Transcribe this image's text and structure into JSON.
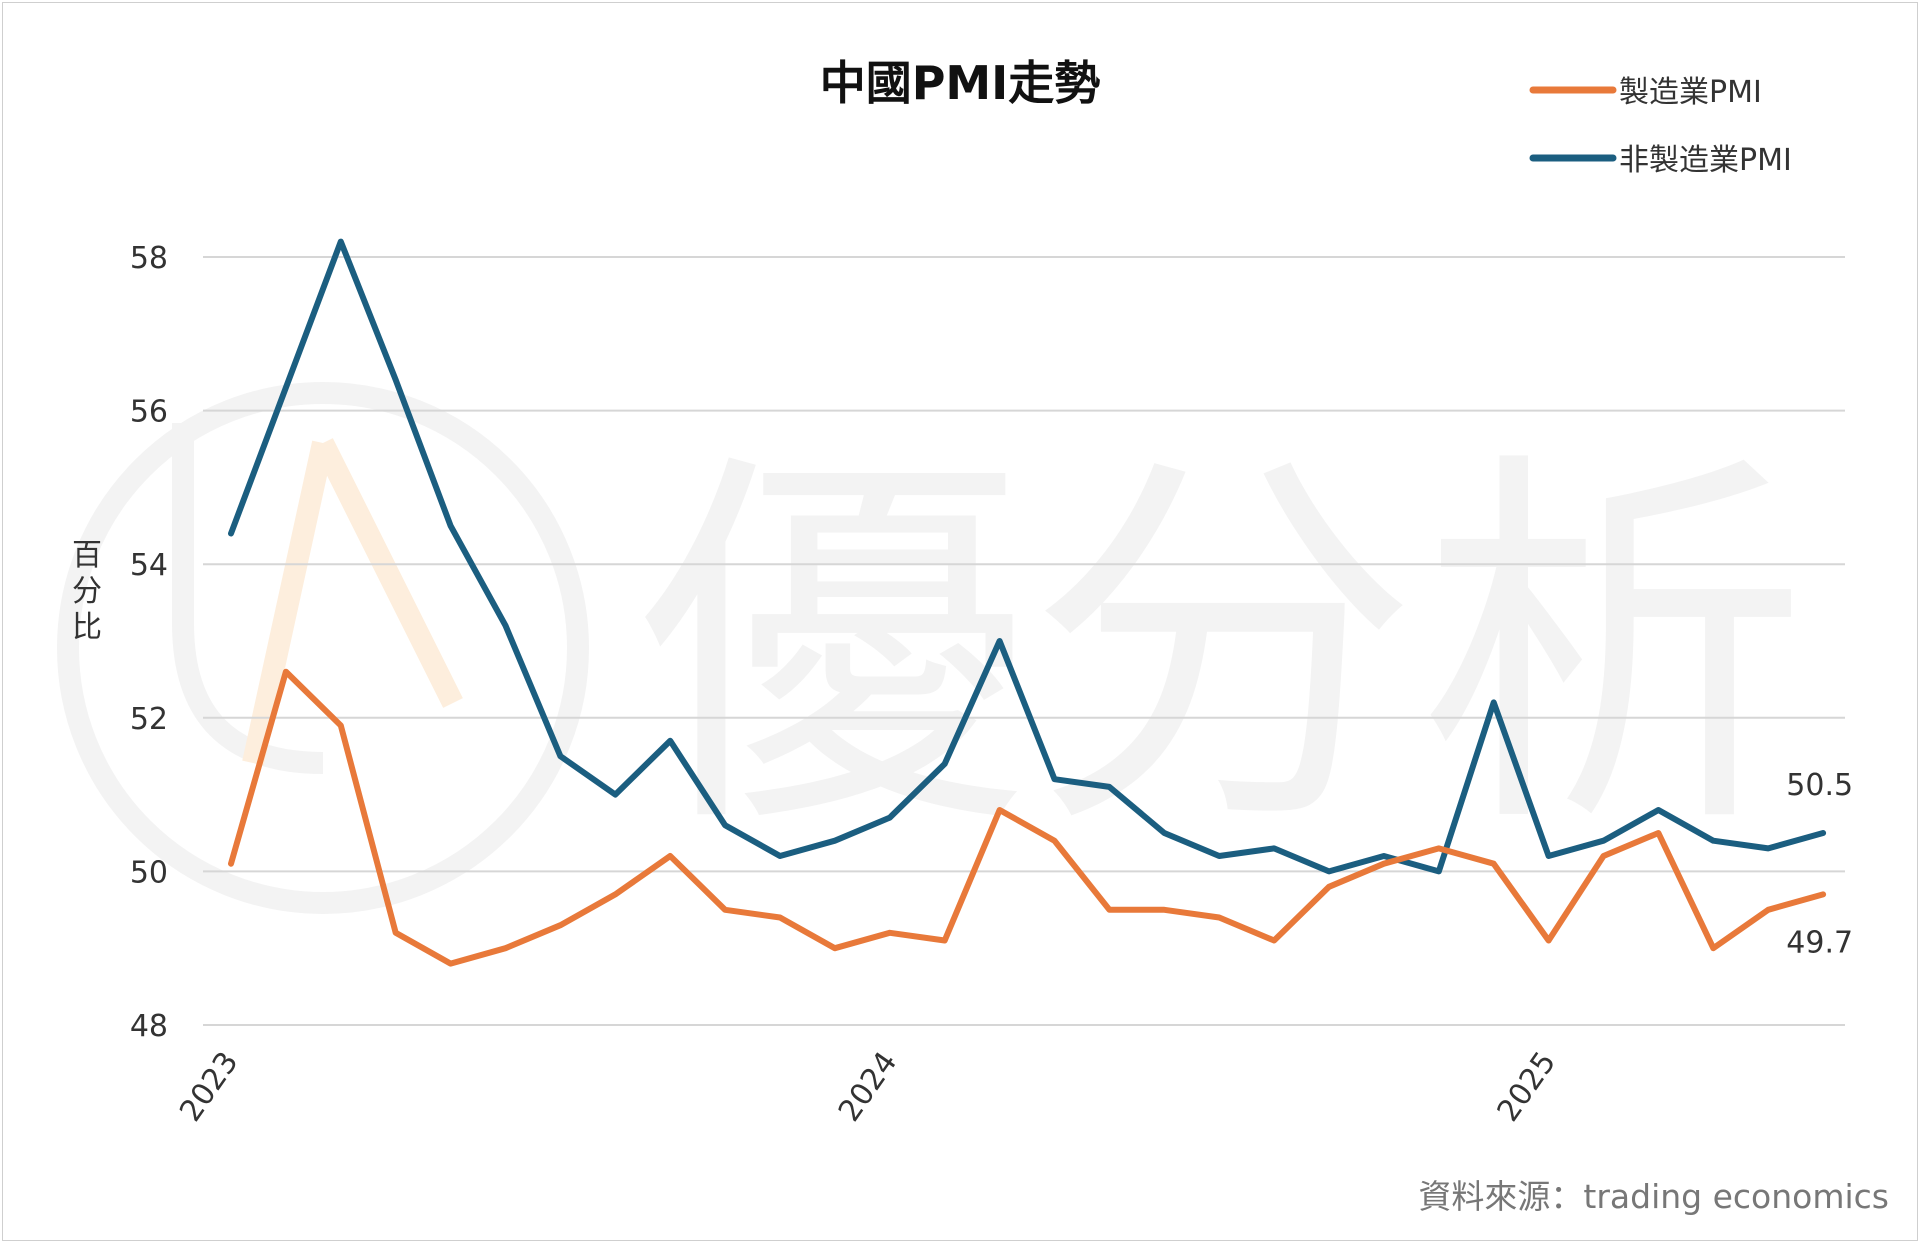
{
  "chart_data": {
    "type": "line",
    "title": "中國PMI走勢",
    "ylabel": "百分比",
    "xlabel": "",
    "ylim": [
      48,
      58
    ],
    "yticks": [
      48,
      50,
      52,
      54,
      56,
      58
    ],
    "x_tick_labels": [
      {
        "label": "2023",
        "index": 0
      },
      {
        "label": "2024",
        "index": 12
      },
      {
        "label": "2025",
        "index": 24
      }
    ],
    "grid": true,
    "legend_position": "top-right",
    "series": [
      {
        "name": "製造業PMI",
        "color": "#E8793A",
        "values": [
          50.1,
          52.6,
          51.9,
          49.2,
          48.8,
          49.0,
          49.3,
          49.7,
          50.2,
          49.5,
          49.4,
          49.0,
          49.2,
          49.1,
          50.8,
          50.4,
          49.5,
          49.5,
          49.4,
          49.1,
          49.8,
          50.1,
          50.3,
          50.1,
          49.1,
          50.2,
          50.5,
          49.0,
          49.5,
          49.7
        ],
        "end_label": "49.7"
      },
      {
        "name": "非製造業PMI",
        "color": "#1B5E80",
        "values": [
          54.4,
          56.3,
          58.2,
          56.4,
          54.5,
          53.2,
          51.5,
          51.0,
          51.7,
          50.6,
          50.2,
          50.4,
          50.7,
          51.4,
          53.0,
          51.2,
          51.1,
          50.5,
          50.2,
          50.3,
          50.0,
          50.2,
          50.0,
          52.2,
          50.2,
          50.4,
          50.8,
          50.4,
          50.3,
          50.5
        ],
        "end_label": "50.5"
      }
    ],
    "watermark_text": "優分析",
    "source": "資料來源：trading economics"
  }
}
